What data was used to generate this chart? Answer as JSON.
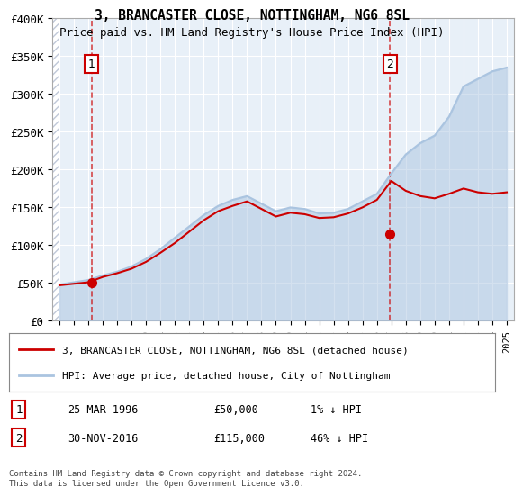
{
  "title_line1": "3, BRANCASTER CLOSE, NOTTINGHAM, NG6 8SL",
  "title_line2": "Price paid vs. HM Land Registry's House Price Index (HPI)",
  "xlabel": "",
  "ylabel": "",
  "ylim": [
    0,
    400000
  ],
  "yticks": [
    0,
    50000,
    100000,
    150000,
    200000,
    250000,
    300000,
    350000,
    400000
  ],
  "ytick_labels": [
    "£0",
    "£50K",
    "£100K",
    "£150K",
    "£200K",
    "£250K",
    "£300K",
    "£350K",
    "£400K"
  ],
  "xlim_start": 1993.5,
  "xlim_end": 2025.5,
  "xticks": [
    1994,
    1995,
    1996,
    1997,
    1998,
    1999,
    2000,
    2001,
    2002,
    2003,
    2004,
    2005,
    2006,
    2007,
    2008,
    2009,
    2010,
    2011,
    2012,
    2013,
    2014,
    2015,
    2016,
    2017,
    2018,
    2019,
    2020,
    2021,
    2022,
    2023,
    2024,
    2025
  ],
  "hpi_color": "#aac4e0",
  "price_color": "#cc0000",
  "marker_color": "#cc0000",
  "bg_color": "#e8f0f8",
  "hatch_color": "#c0c8d8",
  "grid_color": "#ffffff",
  "label_color": "#333333",
  "purchase1_year": 1996.23,
  "purchase1_price": 50000,
  "purchase2_year": 2016.92,
  "purchase2_price": 115000,
  "legend_label1": "3, BRANCASTER CLOSE, NOTTINGHAM, NG6 8SL (detached house)",
  "legend_label2": "HPI: Average price, detached house, City of Nottingham",
  "footnote": "Contains HM Land Registry data © Crown copyright and database right 2024.\nThis data is licensed under the Open Government Licence v3.0.",
  "table_row1": [
    "1",
    "25-MAR-1996",
    "£50,000",
    "1% ↓ HPI"
  ],
  "table_row2": [
    "2",
    "30-NOV-2016",
    "£115,000",
    "46% ↓ HPI"
  ],
  "hpi_years": [
    1994,
    1995,
    1996,
    1997,
    1998,
    1999,
    2000,
    2001,
    2002,
    2003,
    2004,
    2005,
    2006,
    2007,
    2008,
    2009,
    2010,
    2011,
    2012,
    2013,
    2014,
    2015,
    2016,
    2017,
    2018,
    2019,
    2020,
    2021,
    2022,
    2023,
    2024,
    2025
  ],
  "hpi_values": [
    48000,
    51000,
    54000,
    60000,
    65000,
    72000,
    82000,
    95000,
    110000,
    125000,
    140000,
    152000,
    160000,
    165000,
    155000,
    145000,
    150000,
    148000,
    142000,
    143000,
    148000,
    158000,
    168000,
    195000,
    220000,
    235000,
    245000,
    270000,
    310000,
    320000,
    330000,
    335000
  ],
  "price_years": [
    1994,
    1995,
    1996,
    1997,
    1998,
    1999,
    2000,
    2001,
    2002,
    2003,
    2004,
    2005,
    2006,
    2007,
    2008,
    2009,
    2010,
    2011,
    2012,
    2013,
    2014,
    2015,
    2016,
    2017,
    2018,
    2019,
    2020,
    2021,
    2022,
    2023,
    2024,
    2025
  ],
  "price_values": [
    47000,
    49000,
    51000,
    58000,
    63000,
    69000,
    78000,
    90000,
    103000,
    118000,
    133000,
    145000,
    152000,
    158000,
    148000,
    138000,
    143000,
    141000,
    136000,
    137000,
    142000,
    150000,
    160000,
    185000,
    172000,
    165000,
    162000,
    168000,
    175000,
    170000,
    168000,
    170000
  ]
}
